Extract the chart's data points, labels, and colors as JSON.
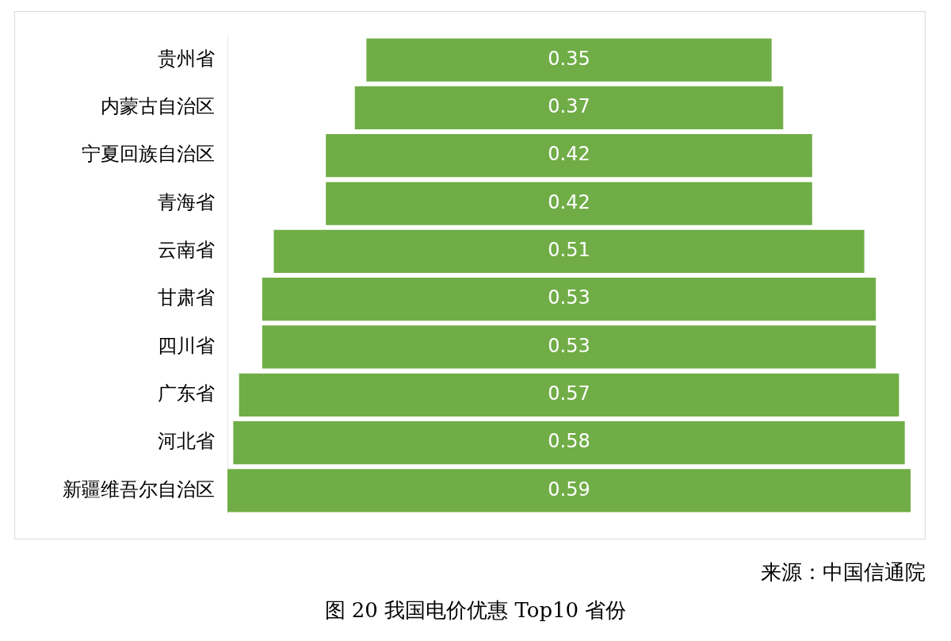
{
  "chart_data": {
    "type": "other",
    "title": "图 20 我国电价优惠 Top10 省份",
    "categories": [
      "贵州省",
      "内蒙古自治区",
      "宁夏回族自治区",
      "青海省",
      "云南省",
      "甘肃省",
      "四川省",
      "广东省",
      "河北省",
      "新疆维吾尔自治区"
    ],
    "values": [
      0.35,
      0.37,
      0.42,
      0.42,
      0.51,
      0.53,
      0.53,
      0.57,
      0.58,
      0.59
    ],
    "color": "#70ad47",
    "data_labels": true,
    "annotations": [
      "来源：中国信通院"
    ]
  }
}
